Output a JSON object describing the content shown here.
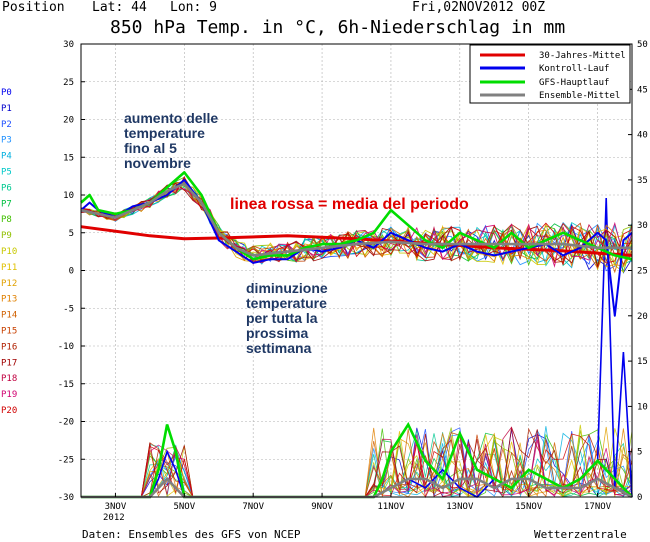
{
  "header": {
    "position_label": "Position",
    "lat_label": "Lat: 44",
    "lon_label": "Lon: 9",
    "run_label": "Fri,02NOV2012 00Z",
    "title": "850 hPa Temp. in °C, 6h-Niederschlag in mm"
  },
  "footer": {
    "source": "Daten: Ensembles des GFS von NCEP",
    "brand": "Wetterzentrale"
  },
  "annotations": {
    "rise": [
      "aumento delle",
      "temperature",
      "fino al 5",
      "novembre"
    ],
    "mean": "linea rossa = media del periodo",
    "drop": [
      "diminuzione",
      "temperature",
      "per tutta la",
      "prossima",
      "settimana"
    ]
  },
  "colors": {
    "mean": "#e00000",
    "control": "#0000ee",
    "gfs": "#00dd00",
    "ensmean": "#808080",
    "members": [
      "#0000cc",
      "#1e4fff",
      "#1e90ff",
      "#00b0e0",
      "#00c8c8",
      "#00c890",
      "#00c040",
      "#40c000",
      "#90c000",
      "#c8c800",
      "#e0c000",
      "#e0a000",
      "#e08000",
      "#d06000",
      "#c84000",
      "#b02000",
      "#a00000",
      "#c00040",
      "#d00070",
      "#d00000"
    ]
  },
  "chart_data": {
    "type": "line",
    "title": "850 hPa Temp. in °C, 6h-Niederschlag in mm",
    "x_unit": "hours from 2012-11-02 00Z",
    "x_ticks": [
      {
        "label": "3NOV",
        "hour": 24
      },
      {
        "label": "5NOV",
        "hour": 72
      },
      {
        "label": "7NOV",
        "hour": 120
      },
      {
        "label": "9NOV",
        "hour": 168
      },
      {
        "label": "11NOV",
        "hour": 216
      },
      {
        "label": "13NOV",
        "hour": 264
      },
      {
        "label": "15NOV",
        "hour": 312
      },
      {
        "label": "17NOV",
        "hour": 360
      }
    ],
    "x_sublabel": "2012",
    "xlim": [
      0,
      384
    ],
    "ylim_left": [
      -30,
      30
    ],
    "left_ticks": [
      30,
      25,
      20,
      15,
      10,
      5,
      0,
      -5,
      -10,
      -15,
      -20,
      -25,
      -30
    ],
    "ylim_right": [
      0,
      50
    ],
    "right_ticks": [
      50,
      45,
      40,
      35,
      30,
      25,
      20,
      15,
      10,
      5,
      0
    ],
    "grid": true,
    "legend_position": "top-right",
    "member_labels": [
      "P0",
      "P1",
      "P2",
      "P3",
      "P4",
      "P5",
      "P6",
      "P7",
      "P8",
      "P9",
      "P10",
      "P11",
      "P12",
      "P13",
      "P14",
      "P15",
      "P16",
      "P17",
      "P18",
      "P19",
      "P20"
    ],
    "temperature_series": [
      {
        "name": "30-Jahres-Mittel",
        "x": [
          0,
          48,
          72,
          96,
          144,
          192,
          240,
          288,
          336,
          384
        ],
        "y": [
          5.8,
          4.6,
          4.2,
          4.3,
          4.6,
          4.2,
          3.6,
          3.0,
          2.6,
          2.0
        ]
      },
      {
        "name": "Kontroll-Lauf",
        "x": [
          0,
          6,
          12,
          24,
          36,
          48,
          60,
          72,
          84,
          96,
          108,
          120,
          132,
          144,
          156,
          168,
          180,
          192,
          204,
          216,
          228,
          240,
          252,
          264,
          276,
          288,
          300,
          312,
          324,
          336,
          348,
          360,
          366,
          372,
          378,
          384
        ],
        "y": [
          8,
          9,
          8,
          7,
          8.5,
          9,
          10,
          12,
          9,
          4,
          2.5,
          1,
          1.5,
          1.5,
          3,
          2.5,
          3,
          4,
          3,
          5,
          4,
          3,
          2.5,
          3.5,
          2.5,
          2,
          2.5,
          3,
          3.5,
          2,
          3,
          5,
          4,
          -6,
          4,
          5
        ]
      },
      {
        "name": "GFS-Hauptlauf",
        "x": [
          0,
          6,
          12,
          24,
          36,
          48,
          60,
          72,
          84,
          96,
          108,
          120,
          132,
          144,
          156,
          168,
          180,
          192,
          204,
          216,
          228,
          240,
          252,
          264,
          276,
          288,
          300,
          312,
          324,
          336,
          348,
          360,
          372,
          384
        ],
        "y": [
          9,
          10,
          8,
          7.5,
          8,
          9,
          11,
          13,
          10,
          5,
          3,
          1.5,
          2,
          2,
          3,
          3.5,
          3.5,
          4,
          5,
          8,
          6,
          4,
          3,
          5,
          4,
          3,
          5,
          3,
          4,
          5,
          4,
          3,
          2,
          1.5
        ]
      },
      {
        "name": "Ensemble-Mittel",
        "x": [
          0,
          12,
          24,
          36,
          48,
          60,
          72,
          84,
          96,
          108,
          120,
          144,
          168,
          192,
          216,
          240,
          264,
          288,
          312,
          336,
          360,
          384
        ],
        "y": [
          8,
          7.5,
          7,
          8,
          9,
          10.5,
          11.5,
          9,
          5,
          3,
          2,
          2.5,
          3,
          3.5,
          3.8,
          3.5,
          3.5,
          3.5,
          3.5,
          3.5,
          3,
          3
        ]
      }
    ],
    "precipitation_series": [
      {
        "name": "Kontroll-Lauf",
        "x": [
          0,
          48,
          54,
          60,
          66,
          72,
          204,
          216,
          228,
          240,
          252,
          264,
          276,
          288,
          300,
          312,
          324,
          336,
          348,
          360,
          366,
          372,
          378,
          384
        ],
        "y": [
          0,
          0,
          2,
          5,
          3,
          0,
          0,
          1,
          2,
          1,
          3,
          1,
          0,
          2,
          1,
          3,
          2,
          1,
          2,
          4,
          33,
          1,
          16,
          0
        ]
      },
      {
        "name": "GFS-Hauptlauf",
        "x": [
          0,
          48,
          54,
          60,
          66,
          72,
          204,
          210,
          216,
          228,
          240,
          252,
          264,
          276,
          288,
          300,
          312,
          324,
          336,
          348,
          360,
          372,
          384
        ],
        "y": [
          0,
          0,
          3,
          8,
          5,
          0,
          0,
          2,
          5,
          8,
          4,
          2,
          7,
          3,
          2,
          1,
          3,
          2,
          1,
          2,
          4,
          2,
          0
        ]
      },
      {
        "name": "Ensemble-Mittel",
        "x": [
          0,
          48,
          60,
          72,
          204,
          216,
          228,
          240,
          252,
          264,
          276,
          288,
          300,
          312,
          324,
          336,
          348,
          360,
          372,
          384
        ],
        "y": [
          0,
          0,
          2,
          0,
          0,
          1,
          2,
          2,
          1,
          2,
          2,
          1,
          2,
          2,
          1,
          1,
          1,
          2,
          1,
          0
        ]
      }
    ]
  }
}
